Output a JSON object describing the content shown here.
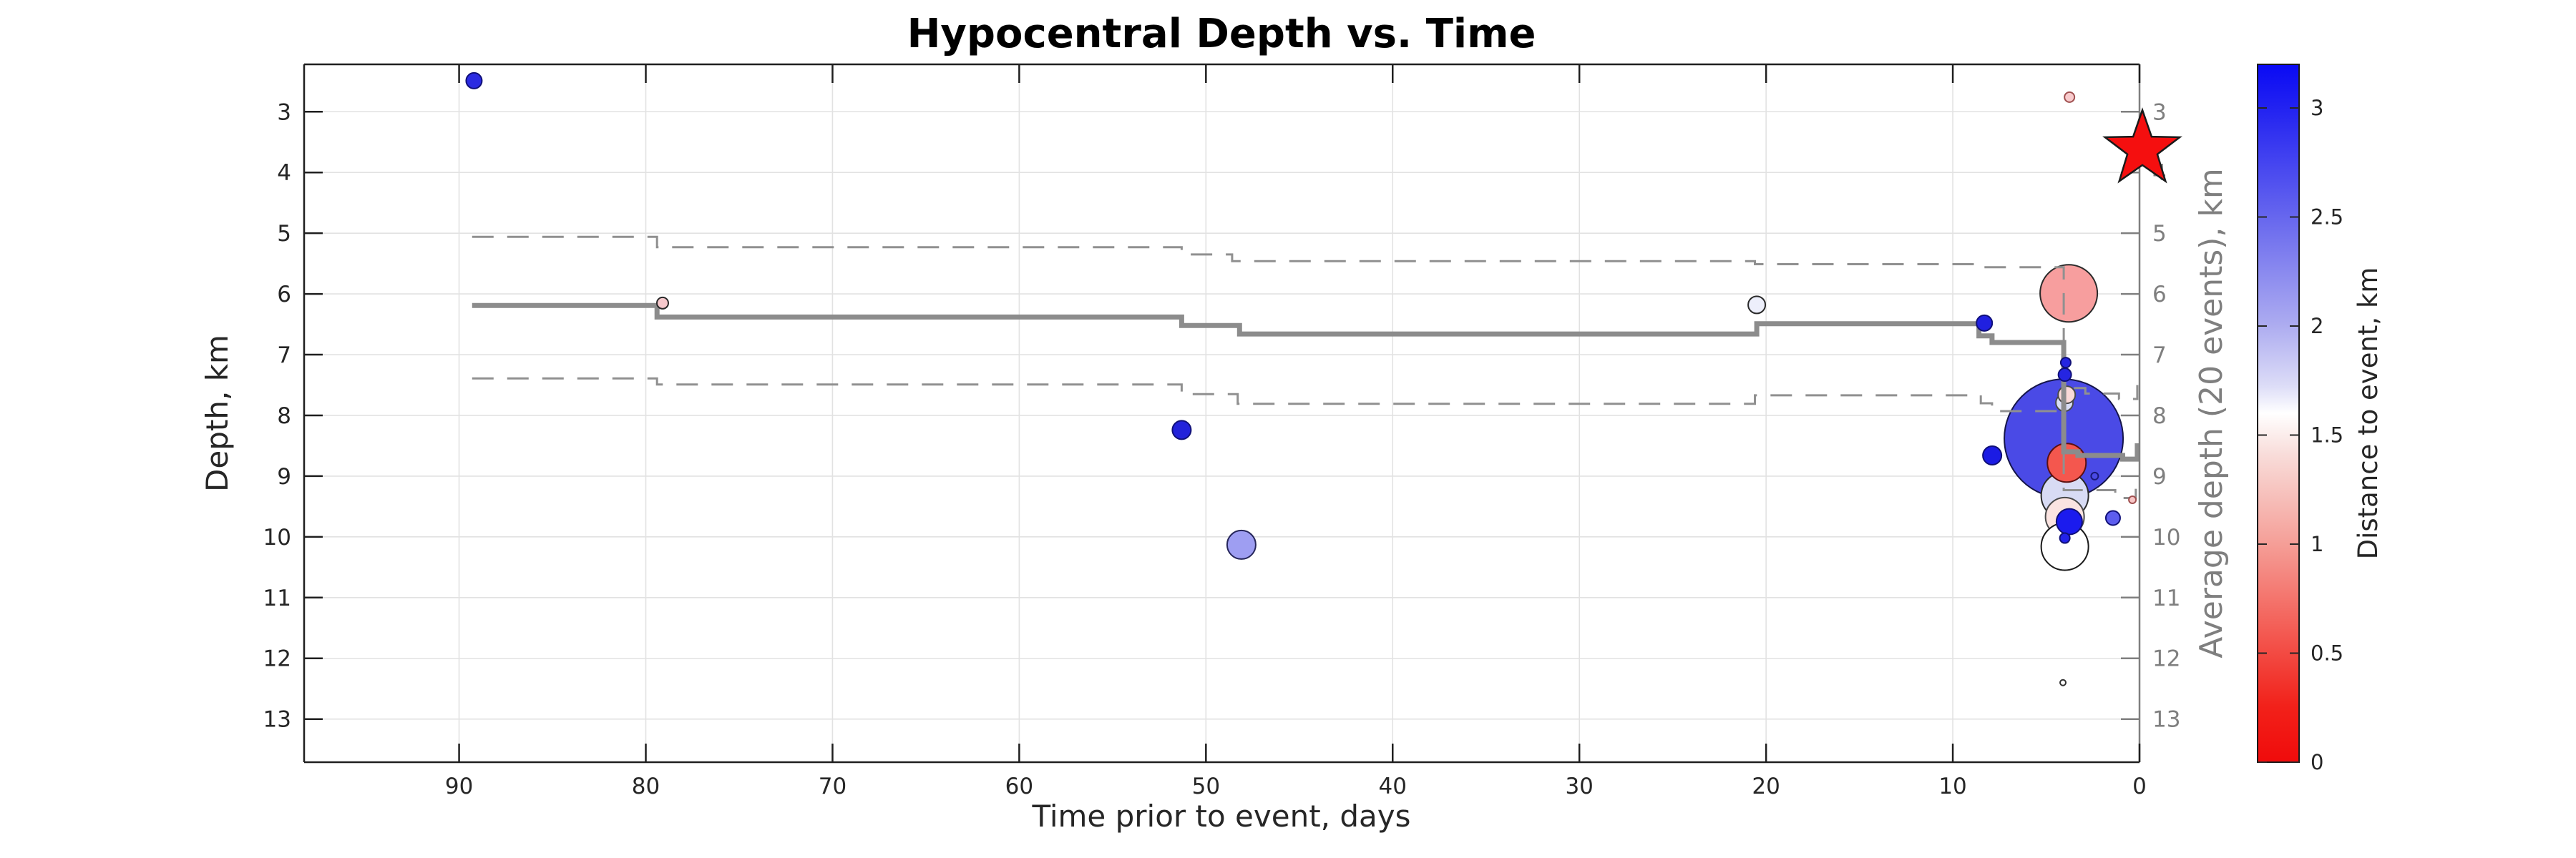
{
  "chart_data": {
    "type": "scatter",
    "title": "Hypocentral Depth vs. Time",
    "xlabel": "Time prior to event, days",
    "ylabel_left": "Depth, km",
    "ylabel_right": "Average depth (20 events), km",
    "x_ticks": [
      90,
      80,
      70,
      60,
      50,
      40,
      30,
      20,
      10,
      0
    ],
    "y_ticks": [
      3,
      4,
      5,
      6,
      7,
      8,
      9,
      10,
      11,
      12,
      13
    ],
    "right_y_ticks": [
      3,
      4,
      5,
      6,
      7,
      8,
      9,
      10,
      11,
      12,
      13
    ],
    "xlim": [
      98.3,
      0
    ],
    "ylim_depth": [
      2.22,
      13.71
    ],
    "x_axis_reversed": true,
    "grid": true,
    "axis_colors": {
      "left": "#1f1f1f",
      "right": "#7f7f7f",
      "grid": "#e2e2e2"
    },
    "mainshock_star": {
      "time": 0,
      "depth": 3.62,
      "fill": "#f50f0f",
      "edge": "#1a1a1a"
    },
    "avg_line": {
      "color": "#8c8c8c",
      "style": "solid",
      "points": [
        [
          89.3,
          6.19
        ],
        [
          79.4,
          6.19
        ],
        [
          79.4,
          6.38
        ],
        [
          51.3,
          6.38
        ],
        [
          51.3,
          6.52
        ],
        [
          48.2,
          6.52
        ],
        [
          48.2,
          6.66
        ],
        [
          20.5,
          6.66
        ],
        [
          20.5,
          6.49
        ],
        [
          8.6,
          6.49
        ],
        [
          8.6,
          6.69
        ],
        [
          7.9,
          6.69
        ],
        [
          7.9,
          6.8
        ],
        [
          4.06,
          6.8
        ],
        [
          4.06,
          8.6
        ],
        [
          3.3,
          8.6
        ],
        [
          3.3,
          8.66
        ],
        [
          0.9,
          8.66
        ],
        [
          0.9,
          8.72
        ],
        [
          0.12,
          8.72
        ],
        [
          0.12,
          8.46
        ]
      ]
    },
    "std_upper_line": {
      "color": "#909090",
      "style": "dashed",
      "points": [
        [
          89.3,
          5.06
        ],
        [
          79.4,
          5.06
        ],
        [
          79.4,
          5.23
        ],
        [
          51.3,
          5.23
        ],
        [
          51.3,
          5.35
        ],
        [
          48.6,
          5.35
        ],
        [
          48.6,
          5.46
        ],
        [
          20.6,
          5.46
        ],
        [
          20.6,
          5.51
        ],
        [
          8.4,
          5.51
        ],
        [
          8.4,
          5.56
        ],
        [
          4.06,
          5.56
        ],
        [
          4.06,
          7.55
        ],
        [
          2.9,
          7.55
        ],
        [
          2.9,
          7.64
        ],
        [
          1.1,
          7.64
        ],
        [
          1.1,
          7.73
        ],
        [
          0.12,
          7.73
        ],
        [
          0.12,
          7.5
        ]
      ]
    },
    "std_lower_line": {
      "color": "#909090",
      "style": "dashed",
      "points": [
        [
          89.3,
          7.39
        ],
        [
          79.4,
          7.39
        ],
        [
          79.4,
          7.49
        ],
        [
          51.3,
          7.49
        ],
        [
          51.3,
          7.65
        ],
        [
          48.3,
          7.65
        ],
        [
          48.3,
          7.81
        ],
        [
          20.6,
          7.81
        ],
        [
          20.6,
          7.67
        ],
        [
          8.5,
          7.67
        ],
        [
          8.5,
          7.8
        ],
        [
          7.9,
          7.8
        ],
        [
          7.9,
          7.93
        ],
        [
          4.06,
          7.93
        ],
        [
          4.06,
          9.23
        ],
        [
          1.3,
          9.23
        ],
        [
          1.3,
          9.36
        ],
        [
          0.2,
          9.36
        ],
        [
          0.2,
          9.15
        ]
      ]
    },
    "colorbar": {
      "label": "Distance to event, km",
      "min": 0,
      "max": 3.2,
      "ticks": [
        0,
        0.5,
        1,
        1.5,
        2,
        2.5,
        3
      ],
      "gradient_stops": [
        [
          0,
          "#0a0af4"
        ],
        [
          0.06,
          "#2121f1"
        ],
        [
          0.22,
          "#6767ee"
        ],
        [
          0.37,
          "#abaaf0"
        ],
        [
          0.46,
          "#dcdcf7"
        ],
        [
          0.5,
          "#ffffff"
        ],
        [
          0.56,
          "#f8dcd9"
        ],
        [
          0.68,
          "#f5a29b"
        ],
        [
          0.8,
          "#f3625a"
        ],
        [
          0.92,
          "#f2211a"
        ],
        [
          1,
          "#f00b0b"
        ]
      ]
    },
    "points": [
      {
        "time": 4.06,
        "depth": 8.38,
        "r": 83,
        "fill": "#4a4ae6",
        "edge": "#15154a",
        "layer": "mid"
      },
      {
        "time": 3.79,
        "depth": 5.99,
        "r": 40,
        "fill": "#f79e9e",
        "edge": "#2a2a2a",
        "layer": "mid"
      },
      {
        "time": 48.1,
        "depth": 10.13,
        "r": 20,
        "fill": "#9e9ef2",
        "edge": "#26265a",
        "layer": "mid"
      },
      {
        "time": 20.5,
        "depth": 6.18,
        "r": 12,
        "fill": "#edeffb",
        "edge": "#2a2a2a",
        "layer": "mid"
      },
      {
        "time": 4.0,
        "depth": 9.32,
        "r": 33,
        "fill": "#d8dbf4",
        "edge": "#2a2a2a",
        "layer": "mid"
      },
      {
        "time": 4.0,
        "depth": 9.67,
        "r": 27,
        "fill": "#fbe4e1",
        "edge": "#4a4a4a",
        "layer": "mid"
      },
      {
        "time": 4.0,
        "depth": 10.16,
        "r": 33,
        "fill": "#ffffff",
        "edge": "#1a1a1a",
        "layer": "mid"
      },
      {
        "time": 4.02,
        "depth": 7.79,
        "r": 12,
        "fill": "#d9ddf6",
        "edge": "#4a4a4a",
        "layer": "mid"
      },
      {
        "time": 3.9,
        "depth": 7.66,
        "r": 12,
        "fill": "#fadad8",
        "edge": "#4a4a4a",
        "layer": "mid"
      },
      {
        "time": 3.9,
        "depth": 8.78,
        "r": 27,
        "fill": "#f4574e",
        "edge": "#5c1010",
        "layer": "mid"
      },
      {
        "time": 3.76,
        "depth": 9.75,
        "r": 18,
        "fill": "#1b1bee",
        "edge": "#101078",
        "layer": "mid"
      },
      {
        "time": 89.2,
        "depth": 2.49,
        "r": 11,
        "fill": "#2b2be2",
        "edge": "#101078",
        "layer": "front"
      },
      {
        "time": 79.1,
        "depth": 6.15,
        "r": 8,
        "fill": "#f6c8cc",
        "edge": "#2a2a2a",
        "layer": "front"
      },
      {
        "time": 51.3,
        "depth": 8.24,
        "r": 13,
        "fill": "#2222da",
        "edge": "#101078",
        "layer": "front"
      },
      {
        "time": 8.31,
        "depth": 6.48,
        "r": 11,
        "fill": "#2020e0",
        "edge": "#101078",
        "layer": "front"
      },
      {
        "time": 7.89,
        "depth": 8.66,
        "r": 13,
        "fill": "#1b1be4",
        "edge": "#101078",
        "layer": "front"
      },
      {
        "time": 3.95,
        "depth": 7.13,
        "r": 7,
        "fill": "#2525e2",
        "edge": "#101078",
        "layer": "front"
      },
      {
        "time": 4.0,
        "depth": 7.33,
        "r": 9,
        "fill": "#2525e2",
        "edge": "#101078",
        "layer": "front"
      },
      {
        "time": 3.75,
        "depth": 2.76,
        "r": 7,
        "fill": "#f8cbcd",
        "edge": "#a05050",
        "layer": "front"
      },
      {
        "time": 2.4,
        "depth": 9.0,
        "r": 5,
        "fill": "none",
        "edge": "#181878",
        "layer": "front"
      },
      {
        "time": 4.0,
        "depth": 10.02,
        "r": 7,
        "fill": "#2222ea",
        "edge": "#101078",
        "layer": "front"
      },
      {
        "time": 1.42,
        "depth": 9.69,
        "r": 10,
        "fill": "#5d5dee",
        "edge": "#101078",
        "layer": "front"
      },
      {
        "time": 0.38,
        "depth": 9.39,
        "r": 5,
        "fill": "#f7c6c6",
        "edge": "#a05050",
        "layer": "front"
      },
      {
        "time": 4.1,
        "depth": 12.4,
        "r": 4,
        "fill": "#ffffff",
        "edge": "#333333",
        "layer": "front"
      }
    ]
  }
}
